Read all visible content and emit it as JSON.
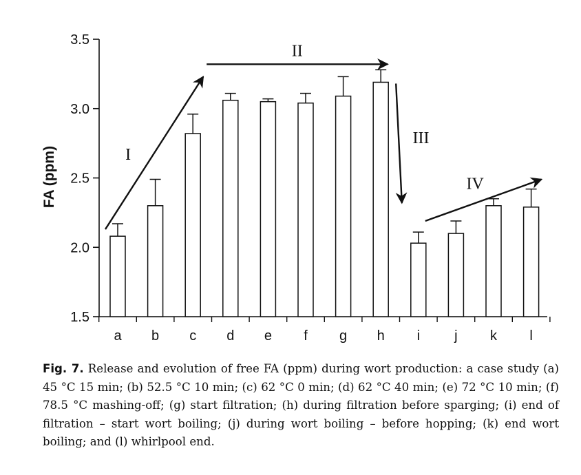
{
  "chart_data": {
    "type": "bar",
    "ylabel": "FA (ppm)",
    "xlabel": "",
    "ylim": [
      1.5,
      3.5
    ],
    "yticks": [
      "1.5",
      "2.0",
      "2.5",
      "3.0",
      "3.5"
    ],
    "categories": [
      "a",
      "b",
      "c",
      "d",
      "e",
      "f",
      "g",
      "h",
      "i",
      "j",
      "k",
      "l"
    ],
    "values": [
      2.08,
      2.3,
      2.82,
      3.06,
      3.05,
      3.04,
      3.09,
      3.19,
      2.03,
      2.1,
      2.3,
      2.29
    ],
    "error": [
      0.09,
      0.19,
      0.14,
      0.05,
      0.02,
      0.07,
      0.14,
      0.09,
      0.08,
      0.09,
      0.05,
      0.13
    ],
    "grid": false,
    "annotations": [
      {
        "label": "I",
        "from": {
          "x": "a",
          "y": 2.13
        },
        "to": {
          "x": "c",
          "y": 3.23
        }
      },
      {
        "label": "II",
        "from": {
          "x": "c",
          "y": 3.32
        },
        "to": {
          "x": "h",
          "y": 3.32
        }
      },
      {
        "label": "III",
        "from": {
          "x": "h",
          "y": 3.18
        },
        "to": {
          "x": "i",
          "y": 2.32
        }
      },
      {
        "label": "IV",
        "from": {
          "x": "i",
          "y": 2.19
        },
        "to": {
          "x": "l",
          "y": 2.49
        }
      }
    ]
  },
  "caption": {
    "fig_label": "Fig. 7.",
    "text": " Release and evolution of free FA (ppm) during wort production: a case study (a) 45 °C 15 min; (b) 52.5 °C 10 min; (c) 62 °C 0 min; (d) 62 °C 40 min; (e) 72 °C 10 min; (f) 78.5 °C mashing-off; (g) start filtration; (h) during filtration before sparging; (i) end of filtration – start wort boiling; (j) during wort boiling – before hopping; (k) end wort boiling; and (l) whirlpool end."
  }
}
